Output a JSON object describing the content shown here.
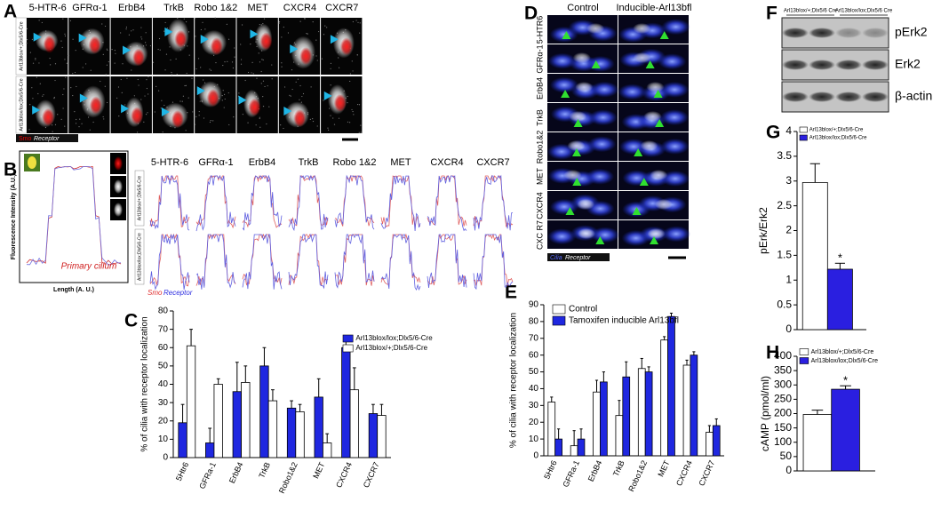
{
  "panel_labels": [
    "A",
    "B",
    "C",
    "D",
    "E",
    "F",
    "G",
    "H"
  ],
  "panel_a": {
    "columns": [
      "5-HTR-6",
      "GFRα-1",
      "ErbB4",
      "TrkB",
      "Robo 1&2",
      "MET",
      "CXCR4",
      "CXCR7"
    ],
    "rows": [
      "Arl13blox/+;Dlx5/6-Cre",
      "Arl13blox/lox;Dlx5/6-Cre"
    ],
    "key": [
      "Smo",
      "Receptor"
    ]
  },
  "panel_b": {
    "columns": [
      "5-HTR-6",
      "GFRα-1",
      "ErbB4",
      "TrkB",
      "Robo 1&2",
      "MET",
      "CXCR4",
      "CXCR7"
    ],
    "rows": [
      "Arl13blox/+;Dlx5/6-Cre",
      "Arl13blox/lox;Dlx5/6-Cre"
    ],
    "y_label": "Fluorescence Intensity (A.U.)",
    "x_label": "Length (A. U.)",
    "annotation": "Primary cilium",
    "key": [
      "Smo",
      "Receptor"
    ]
  },
  "panel_d": {
    "columns": [
      "Control",
      "Inducible-Arl13bfl"
    ],
    "rows": [
      "5-HTR6",
      "GFRα-1",
      "ErbB4",
      "TrkB",
      "Robo1&2",
      "MET",
      "CXCR4",
      "CXC R7"
    ],
    "key": [
      "Cilia",
      "Receptor"
    ]
  },
  "panel_f": {
    "columns": [
      "Arl13blox/+;Dlx5/6 Cre",
      "Arl13blox/lox;Dlx5/6 Cre"
    ],
    "bands": [
      "pErk2",
      "Erk2",
      "β-actin"
    ]
  },
  "chart_data": [
    {
      "type": "bar",
      "y_label": "% of cilia with receptor localization",
      "categories": [
        "5Htr6",
        "GFRa-1",
        "ErbB4",
        "TrkB",
        "Robo1&2",
        "MET",
        "CXCR4",
        "CXCR7"
      ],
      "series": [
        {
          "name": "Arl13blox/lox;Dlx5/6-Cre",
          "color": "#1f27e0",
          "values": [
            19,
            8,
            36,
            50,
            27,
            33,
            60,
            24
          ],
          "errors": [
            10,
            8,
            16,
            10,
            4,
            10,
            5,
            5
          ]
        },
        {
          "name": "Arl13blox/+;Dlx5/6-Cre",
          "color": "#ffffff",
          "values": [
            61,
            40,
            41,
            31,
            25,
            8,
            37,
            23
          ],
          "errors": [
            9,
            3,
            9,
            6,
            4,
            5,
            12,
            6
          ]
        }
      ],
      "ylim": [
        0,
        80
      ],
      "yticks": [
        0,
        10,
        20,
        30,
        40,
        50,
        60,
        70,
        80
      ]
    },
    {
      "type": "bar",
      "y_label": "% of cilia with receptor localization",
      "categories": [
        "5Htr6",
        "GFRa-1",
        "ErbB4",
        "TrkB",
        "Robo1&2",
        "MET",
        "CXCR4",
        "CXCR7"
      ],
      "series": [
        {
          "name": "Control",
          "color": "#ffffff",
          "values": [
            32,
            6,
            38,
            24,
            52,
            69,
            54,
            14
          ],
          "errors": [
            3,
            9,
            7,
            9,
            6,
            2,
            3,
            4
          ]
        },
        {
          "name": "Tamoxifen inducible Arl13bfl",
          "color": "#1f27e0",
          "values": [
            10,
            10,
            44,
            47,
            50,
            83,
            60,
            18
          ],
          "errors": [
            6,
            6,
            6,
            9,
            3,
            2,
            2,
            4
          ]
        }
      ],
      "ylim": [
        0,
        90
      ],
      "yticks": [
        0,
        10,
        20,
        30,
        40,
        50,
        60,
        70,
        80,
        90
      ]
    },
    {
      "type": "bar",
      "y_label": "pErk/Erk2",
      "series": [
        {
          "name": "Arl13blox/+;Dlx5/6-Cre",
          "color": "#ffffff",
          "values": [
            2.97
          ],
          "errors": [
            0.38
          ]
        },
        {
          "name": "Arl13blox/lox;Dlx5/6-Cre",
          "color": "#2a1fe0",
          "values": [
            1.22
          ],
          "errors": [
            0.12
          ]
        }
      ],
      "ylim": [
        0,
        4
      ],
      "yticks": [
        0,
        0.5,
        1,
        1.5,
        2,
        2.5,
        3,
        3.5,
        4
      ],
      "annotation": "*"
    },
    {
      "type": "bar",
      "y_label": "cAMP (pmol/ml)",
      "series": [
        {
          "name": "Arl13blox/+;Dlx5/6-Cre",
          "color": "#ffffff",
          "values": [
            197
          ],
          "errors": [
            15
          ]
        },
        {
          "name": "Arl13blox/lox;Dlx5/6-Cre",
          "color": "#2a1fe0",
          "values": [
            285
          ],
          "errors": [
            12
          ]
        }
      ],
      "ylim": [
        0,
        400
      ],
      "yticks": [
        0,
        50,
        100,
        150,
        200,
        250,
        300,
        350,
        400
      ],
      "annotation": "*"
    }
  ]
}
